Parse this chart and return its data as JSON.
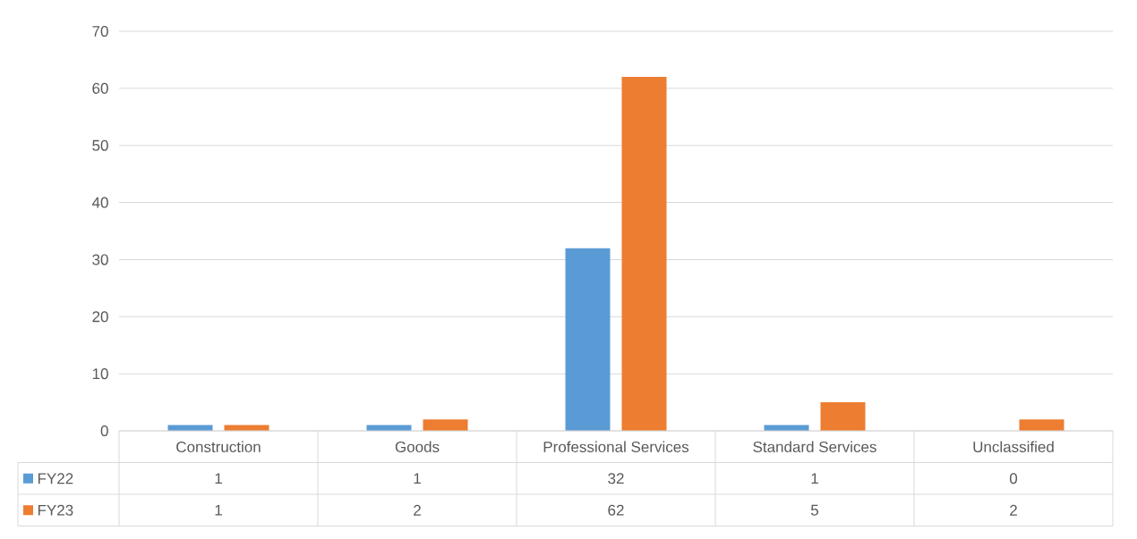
{
  "chart_data": {
    "type": "bar",
    "categories": [
      "Construction",
      "Goods",
      "Professional Services",
      "Standard Services",
      "Unclassified"
    ],
    "series": [
      {
        "name": "FY22",
        "color": "#5b9bd5",
        "values": [
          1,
          1,
          32,
          1,
          0
        ]
      },
      {
        "name": "FY23",
        "color": "#ed7d31",
        "values": [
          1,
          2,
          62,
          5,
          2
        ]
      }
    ],
    "ylim": [
      0,
      70
    ],
    "yticks": [
      0,
      10,
      20,
      30,
      40,
      50,
      60,
      70
    ],
    "grid": "y",
    "legend": "bottom left",
    "data_labels": true
  }
}
